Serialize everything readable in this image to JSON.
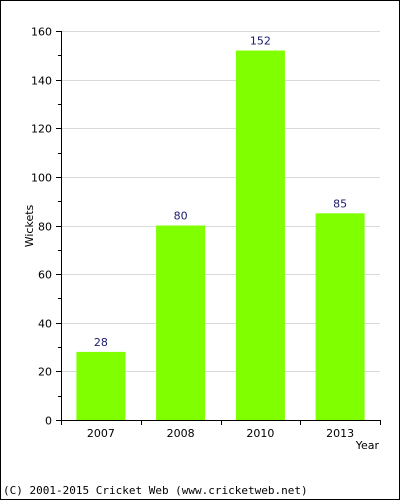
{
  "chart_data": {
    "type": "bar",
    "categories": [
      "2007",
      "2008",
      "2010",
      "2013"
    ],
    "values": [
      28,
      80,
      152,
      85
    ],
    "data_labels": [
      "28",
      "80",
      "152",
      "85"
    ],
    "title": "",
    "xlabel": "Year",
    "ylabel": "Wickets",
    "ylim": [
      0,
      160
    ],
    "yticks": [
      0,
      20,
      40,
      60,
      80,
      100,
      120,
      140,
      160
    ],
    "ytick_labels": [
      "0",
      "20",
      "40",
      "60",
      "80",
      "100",
      "120",
      "140",
      "160"
    ],
    "grid": true,
    "legend": "none",
    "colors": {
      "bar": "#80ff00",
      "data_label": "#1a1a6e",
      "grid": "#d9d9d9",
      "frame": "#000000"
    }
  },
  "footer": {
    "copyright": "(C) 2001-2015 Cricket Web (www.cricketweb.net)"
  }
}
